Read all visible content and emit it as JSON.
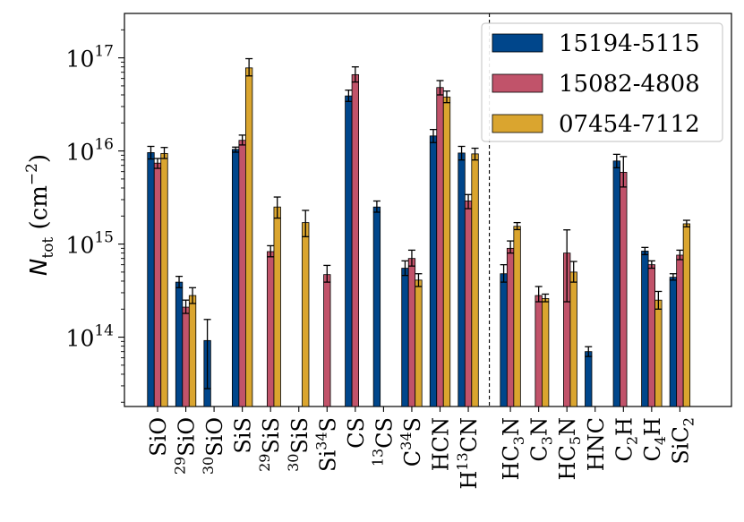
{
  "chart_data": {
    "type": "bar",
    "ylabel": {
      "main": "N",
      "sub": "tot",
      "unit_open": "(cm",
      "unit_sup": "−2",
      "unit_close": ")"
    },
    "yscale": "log",
    "ylim": [
      18000000000000.0,
      3e+17
    ],
    "y_ticks": [
      {
        "value": 100000000000000.0,
        "base": "10",
        "exp": "14"
      },
      {
        "value": 1000000000000000.0,
        "base": "10",
        "exp": "15"
      },
      {
        "value": 1e+16,
        "base": "10",
        "exp": "16"
      },
      {
        "value": 1e+17,
        "base": "10",
        "exp": "17"
      }
    ],
    "legend_position": "top-right",
    "separator_after_category_index": 11,
    "categories": [
      {
        "label": [
          {
            "t": "SiO"
          }
        ]
      },
      {
        "label": [
          {
            "t": "29",
            "s": "sup"
          },
          {
            "t": "SiO"
          }
        ]
      },
      {
        "label": [
          {
            "t": "30",
            "s": "sup"
          },
          {
            "t": "SiO"
          }
        ]
      },
      {
        "label": [
          {
            "t": "SiS"
          }
        ]
      },
      {
        "label": [
          {
            "t": "29",
            "s": "sup"
          },
          {
            "t": "SiS"
          }
        ]
      },
      {
        "label": [
          {
            "t": "30",
            "s": "sup"
          },
          {
            "t": "SiS"
          }
        ]
      },
      {
        "label": [
          {
            "t": "Si"
          },
          {
            "t": "34",
            "s": "sup"
          },
          {
            "t": "S"
          }
        ]
      },
      {
        "label": [
          {
            "t": "CS"
          }
        ]
      },
      {
        "label": [
          {
            "t": "13",
            "s": "sup"
          },
          {
            "t": "CS"
          }
        ]
      },
      {
        "label": [
          {
            "t": "C"
          },
          {
            "t": "34",
            "s": "sup"
          },
          {
            "t": "S"
          }
        ]
      },
      {
        "label": [
          {
            "t": "HCN"
          }
        ]
      },
      {
        "label": [
          {
            "t": "H"
          },
          {
            "t": "13",
            "s": "sup"
          },
          {
            "t": "CN"
          }
        ]
      },
      {
        "label": [
          {
            "t": "HC"
          },
          {
            "t": "3",
            "s": "sub"
          },
          {
            "t": "N"
          }
        ]
      },
      {
        "label": [
          {
            "t": "C"
          },
          {
            "t": "3",
            "s": "sub"
          },
          {
            "t": "N"
          }
        ]
      },
      {
        "label": [
          {
            "t": "HC"
          },
          {
            "t": "5",
            "s": "sub"
          },
          {
            "t": "N"
          }
        ]
      },
      {
        "label": [
          {
            "t": "HNC"
          }
        ]
      },
      {
        "label": [
          {
            "t": "C"
          },
          {
            "t": "2",
            "s": "sub"
          },
          {
            "t": "H"
          }
        ]
      },
      {
        "label": [
          {
            "t": "C"
          },
          {
            "t": "4",
            "s": "sub"
          },
          {
            "t": "H"
          }
        ]
      },
      {
        "label": [
          {
            "t": "SiC"
          },
          {
            "t": "2",
            "s": "sub"
          }
        ]
      }
    ],
    "series": [
      {
        "name": "15194-5115",
        "color": "#00468b",
        "values": [
          9600000000000000.0,
          390000000000000.0,
          92000000000000.0,
          1.04e+16,
          null,
          null,
          null,
          3.9e+16,
          2500000000000000.0,
          550000000000000.0,
          1.45e+16,
          9500000000000000.0,
          480000000000000.0,
          null,
          null,
          70000000000000.0,
          7800000000000000.0,
          840000000000000.0,
          440000000000000.0
        ],
        "err_low": [
          8200000000000000.0,
          340000000000000.0,
          28000000000000.0,
          9700000000000000.0,
          null,
          null,
          null,
          3.4e+16,
          2200000000000000.0,
          460000000000000.0,
          1.23e+16,
          8000000000000000.0,
          390000000000000.0,
          null,
          null,
          62000000000000.0,
          6600000000000000.0,
          770000000000000.0,
          410000000000000.0
        ],
        "err_high": [
          1.12e+16,
          450000000000000.0,
          155000000000000.0,
          1.1e+16,
          null,
          null,
          null,
          4.5e+16,
          2900000000000000.0,
          660000000000000.0,
          1.7e+16,
          1.12e+16,
          600000000000000.0,
          null,
          null,
          79000000000000.0,
          9200000000000000.0,
          920000000000000.0,
          480000000000000.0
        ]
      },
      {
        "name": "15082-4808",
        "color": "#c1536a",
        "values": [
          7400000000000000.0,
          210000000000000.0,
          null,
          1.3e+16,
          830000000000000.0,
          null,
          470000000000000.0,
          6.6e+16,
          null,
          700000000000000.0,
          4.8e+16,
          2900000000000000.0,
          900000000000000.0,
          280000000000000.0,
          800000000000000.0,
          null,
          5900000000000000.0,
          600000000000000.0,
          760000000000000.0
        ],
        "err_low": [
          6500000000000000.0,
          180000000000000.0,
          null,
          1.16e+16,
          730000000000000.0,
          null,
          390000000000000.0,
          5.5e+16,
          null,
          580000000000000.0,
          4e+16,
          2400000000000000.0,
          800000000000000.0,
          240000000000000.0,
          240000000000000.0,
          null,
          4100000000000000.0,
          550000000000000.0,
          680000000000000.0
        ],
        "err_high": [
          8300000000000000.0,
          250000000000000.0,
          null,
          1.48e+16,
          960000000000000.0,
          null,
          590000000000000.0,
          8e+16,
          null,
          860000000000000.0,
          5.7e+16,
          3400000000000000.0,
          1080000000000000.0,
          350000000000000.0,
          1420000000000000.0,
          null,
          8700000000000000.0,
          660000000000000.0,
          860000000000000.0
        ]
      },
      {
        "name": "07454-7112",
        "color": "#daa52f",
        "values": [
          9400000000000000.0,
          280000000000000.0,
          null,
          7.8e+16,
          2500000000000000.0,
          1700000000000000.0,
          null,
          null,
          null,
          410000000000000.0,
          3.8e+16,
          9300000000000000.0,
          1550000000000000.0,
          260000000000000.0,
          500000000000000.0,
          null,
          null,
          250000000000000.0,
          1650000000000000.0
        ],
        "err_low": [
          8300000000000000.0,
          230000000000000.0,
          null,
          6.4e+16,
          1900000000000000.0,
          1200000000000000.0,
          null,
          null,
          null,
          350000000000000.0,
          3.3e+16,
          8000000000000000.0,
          1430000000000000.0,
          240000000000000.0,
          390000000000000.0,
          null,
          null,
          200000000000000.0,
          1530000000000000.0
        ],
        "err_high": [
          1.09e+16,
          340000000000000.0,
          null,
          9.8e+16,
          3200000000000000.0,
          2300000000000000.0,
          null,
          null,
          null,
          480000000000000.0,
          4.4e+16,
          1.07e+16,
          1700000000000000.0,
          290000000000000.0,
          650000000000000.0,
          null,
          null,
          310000000000000.0,
          1800000000000000.0
        ]
      }
    ]
  }
}
